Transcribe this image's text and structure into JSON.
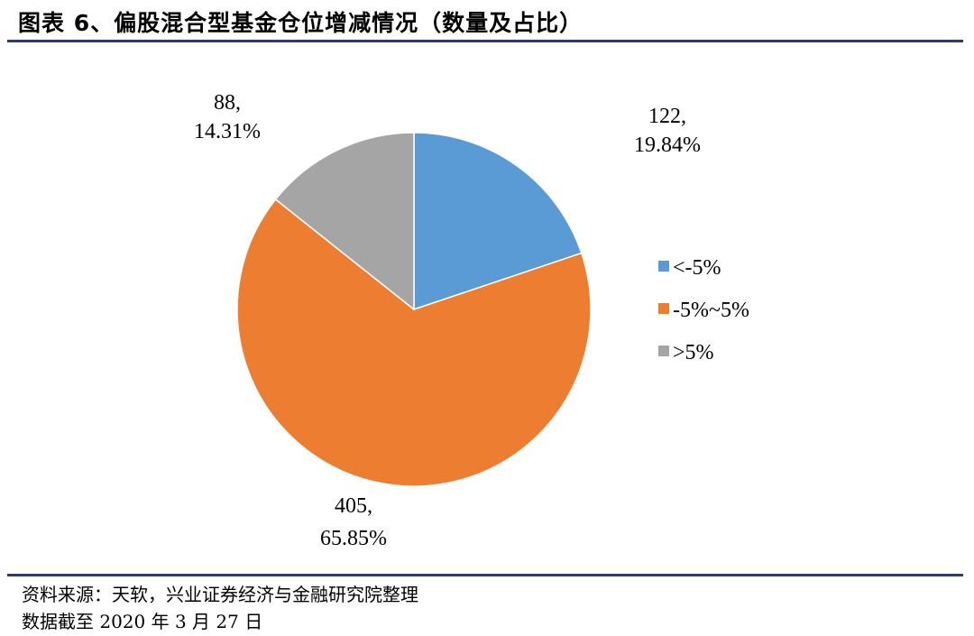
{
  "header": {
    "title": "图表 6、偏股混合型基金仓位增减情况（数量及占比）"
  },
  "footer": {
    "source": "资料来源：天软，兴业证券经济与金融研究院整理",
    "date_note": "数据截至 2020 年 3 月 27 日"
  },
  "chart_data": {
    "type": "pie",
    "title": "",
    "categories": [
      "<-5%",
      "-5%~5%",
      ">5%"
    ],
    "values": [
      122,
      405,
      88
    ],
    "percents": [
      "19.84%",
      "65.85%",
      "14.31%"
    ],
    "colors": [
      "#5b9bd5",
      "#ed7d31",
      "#a5a5a5"
    ],
    "data_labels": [
      {
        "count": "122,",
        "pct": "19.84%"
      },
      {
        "count": "405,",
        "pct": "65.85%"
      },
      {
        "count": "88,",
        "pct": "14.31%"
      }
    ],
    "legend": {
      "position": "right",
      "items": [
        "<-5%",
        "-5%~5%",
        ">5%"
      ]
    },
    "start_angle": "12 o'clock",
    "direction": "clockwise"
  }
}
